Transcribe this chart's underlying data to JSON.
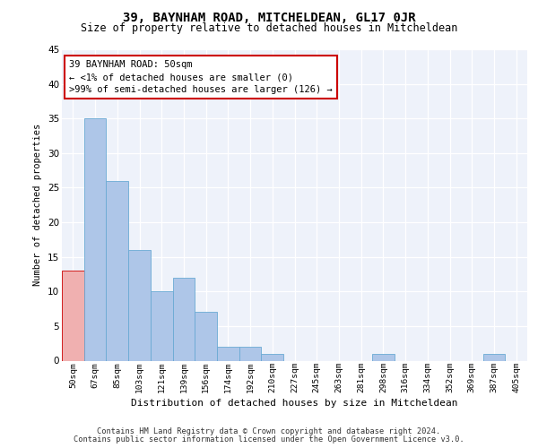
{
  "title": "39, BAYNHAM ROAD, MITCHELDEAN, GL17 0JR",
  "subtitle": "Size of property relative to detached houses in Mitcheldean",
  "xlabel": "Distribution of detached houses by size in Mitcheldean",
  "ylabel": "Number of detached properties",
  "categories": [
    "50sqm",
    "67sqm",
    "85sqm",
    "103sqm",
    "121sqm",
    "139sqm",
    "156sqm",
    "174sqm",
    "192sqm",
    "210sqm",
    "227sqm",
    "245sqm",
    "263sqm",
    "281sqm",
    "298sqm",
    "316sqm",
    "334sqm",
    "352sqm",
    "369sqm",
    "387sqm",
    "405sqm"
  ],
  "values": [
    13,
    35,
    26,
    16,
    10,
    12,
    7,
    2,
    2,
    1,
    0,
    0,
    0,
    0,
    1,
    0,
    0,
    0,
    0,
    1,
    0
  ],
  "bar_color": "#aec6e8",
  "bar_edge_color": "#6aaad4",
  "highlight_index": 0,
  "highlight_color": "#f0b0b0",
  "highlight_edge_color": "#cc0000",
  "annotation_text": "39 BAYNHAM ROAD: 50sqm\n← <1% of detached houses are smaller (0)\n>99% of semi-detached houses are larger (126) →",
  "annotation_box_color": "#ffffff",
  "annotation_box_edge_color": "#cc0000",
  "ylim": [
    0,
    45
  ],
  "yticks": [
    0,
    5,
    10,
    15,
    20,
    25,
    30,
    35,
    40,
    45
  ],
  "background_color": "#eef2fa",
  "footer_line1": "Contains HM Land Registry data © Crown copyright and database right 2024.",
  "footer_line2": "Contains public sector information licensed under the Open Government Licence v3.0."
}
